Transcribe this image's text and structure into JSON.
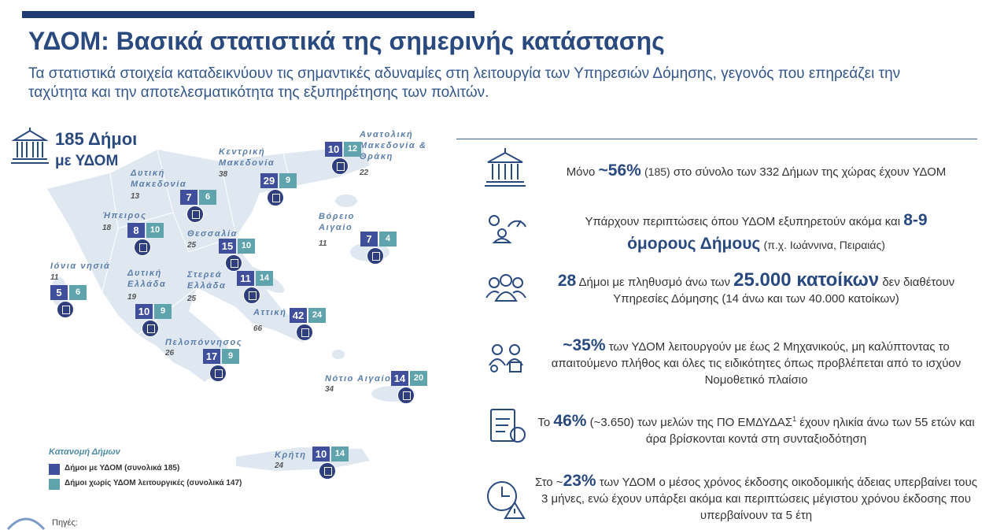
{
  "header": {
    "title": "ΥΔΟΜ: Βασικά στατιστικά της σημερινής κατάστασης",
    "subtitle": "Τα στατιστικά στοιχεία καταδεικνύουν τις σημαντικές αδυναμίες στη λειτουργία των Υπηρεσιών Δόμησης, γεγονός που επηρεάζει την ταχύτητα και την αποτελεσματικότητα της εξυπηρέτησης των πολιτών."
  },
  "map": {
    "headline": [
      "185 Δήμοι",
      "με ΥΔΟΜ"
    ],
    "regions": [
      {
        "name": "Ανατολική Μακεδονία & Θράκη",
        "total": "22",
        "with": "10",
        "without": "12"
      },
      {
        "name": "Κεντρική Μακεδονία",
        "total": "38",
        "with": "29",
        "without": "9"
      },
      {
        "name": "Δυτική Μακεδονία",
        "total": "13",
        "with": "7",
        "without": "6"
      },
      {
        "name": "Ήπειρος",
        "total": "18",
        "with": "8",
        "without": "10"
      },
      {
        "name": "Θεσσαλία",
        "total": "25",
        "with": "15",
        "without": "10"
      },
      {
        "name": "Βόρειο Αιγαίο",
        "total": "11",
        "with": "7",
        "without": "4"
      },
      {
        "name": "Ιόνια νησιά",
        "total": "11",
        "with": "5",
        "without": "6"
      },
      {
        "name": "Δυτική Ελλάδα",
        "total": "19",
        "with": "10",
        "without": "9"
      },
      {
        "name": "Στερεά Ελλάδα",
        "total": "25",
        "with": "11",
        "without": "14"
      },
      {
        "name": "Αττική",
        "total": "66",
        "with": "42",
        "without": "24"
      },
      {
        "name": "Πελοπόννησος",
        "total": "26",
        "with": "17",
        "without": "9"
      },
      {
        "name": "Νότιο Αιγαίο",
        "total": "34",
        "with": "14",
        "without": "20"
      },
      {
        "name": "Κρήτη",
        "total": "24",
        "with": "10",
        "without": "14"
      }
    ],
    "legend": {
      "title": "Κατανομή Δήμων",
      "items": [
        "Δήμοι με ΥΔΟΜ (συνολικά 185)",
        "Δήμοι χωρίς ΥΔΟΜ λειτουργικές (συνολικά 147)"
      ]
    },
    "sources": "Πηγές:"
  },
  "stats": [
    [
      "Μόνο",
      "~56%",
      "(185)",
      "στο σύνολο των 332 Δήμων της χώρας έχουν ΥΔΟΜ"
    ],
    [
      "Υπάρχουν περιπτώσεις όπου ΥΔΟΜ εξυπηρετούν ακόμα και",
      "8-9",
      "όμορους Δήμους",
      "(π.χ. Ιωάννινα, Πειραιάς)"
    ],
    [
      "28",
      "Δήμοι με πληθυσμό άνω των",
      "25.000 κατοίκων",
      "δεν διαθέτουν Υπηρεσίες Δόμησης (14 άνω και των 40.000 κατοίκων)"
    ],
    [
      "~35%",
      "των ΥΔΟΜ λειτουργούν με έως 2 Μηχανικούς, μη καλύπτοντας το απαιτούμενο πλήθος και όλες τις ειδικότητες όπως προβλέπεται από το ισχύον Νομοθετικό πλαίσιο"
    ],
    [
      "Το",
      "46%",
      "(~3.650) των μελών της ΠΟ ΕΜΔΥΔΑΣ",
      "1",
      "έχουν ηλικία άνω των 55 ετών και άρα βρίσκονται κοντά στη συνταξιοδότηση"
    ],
    [
      "Στο ~",
      "23%",
      "των ΥΔΟΜ ο μέσος χρόνος έκδοσης οικοδομικής άδειας υπερβαίνει τους 3 μήνες, ενώ έχουν υπάρξει ακόμα και περιπτώσεις μέγιστου χρόνου έκδοσης που υπερβαίνουν τα 5 έτη"
    ]
  ]
}
